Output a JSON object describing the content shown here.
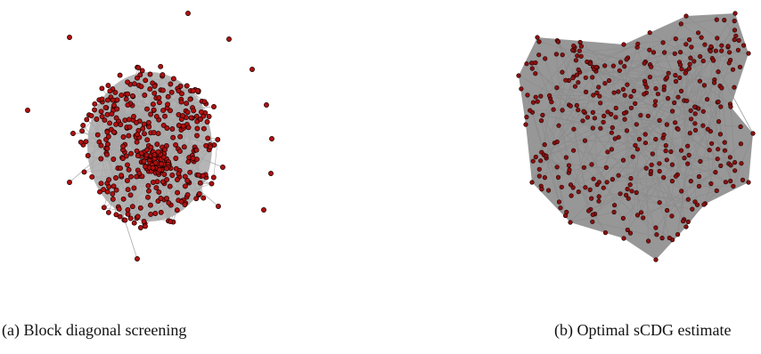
{
  "panels": [
    {
      "id": "a",
      "caption": "(a) Block diagonal screening",
      "node_fill": "#b01010",
      "node_stroke": "#1a0000",
      "edge_color": "#a8a8a8"
    },
    {
      "id": "b",
      "caption": "(b) Optimal sCDG estimate",
      "node_fill": "#8a1010",
      "node_stroke": "#1a0000",
      "edge_color": "#8c8c8c"
    }
  ]
}
